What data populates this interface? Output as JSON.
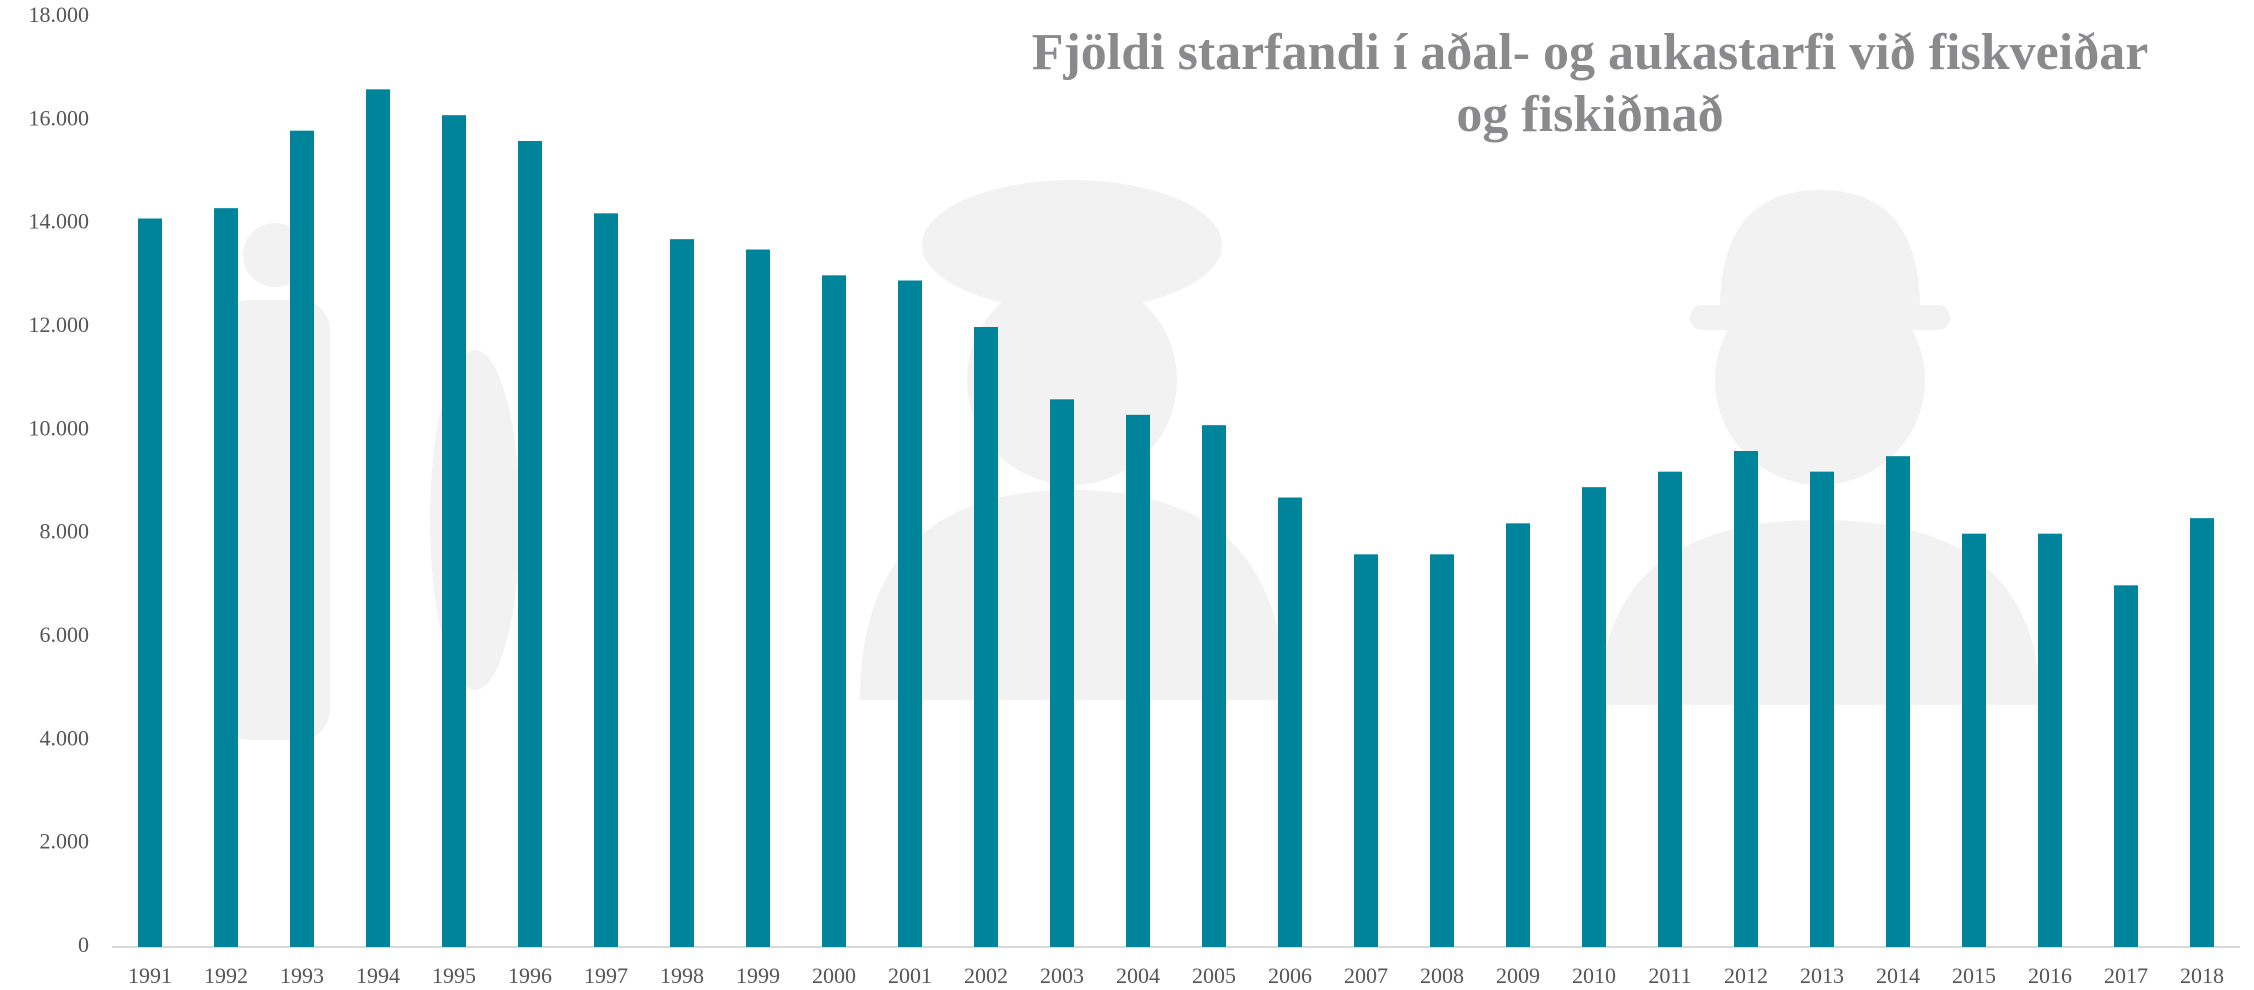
{
  "chart_data": {
    "type": "bar",
    "title": "Fjöldi starfandi í aðal- og aukastarfi við fiskveiðar og fiskiðnað",
    "categories": [
      "1991",
      "1992",
      "1993",
      "1994",
      "1995",
      "1996",
      "1997",
      "1998",
      "1999",
      "2000",
      "2001",
      "2002",
      "2003",
      "2004",
      "2005",
      "2006",
      "2007",
      "2008",
      "2009",
      "2010",
      "2011",
      "2012",
      "2013",
      "2014",
      "2015",
      "2016",
      "2017",
      "2018"
    ],
    "values": [
      14100,
      14300,
      15800,
      16600,
      16100,
      15600,
      14200,
      13700,
      13500,
      13000,
      12900,
      12000,
      10600,
      10300,
      10100,
      8700,
      7600,
      7600,
      8200,
      8900,
      9200,
      9600,
      9200,
      9500,
      8000,
      8000,
      7000,
      8300
    ],
    "color": "#00849b",
    "ylim": [
      0,
      18000
    ],
    "yticks": [
      0,
      {
        "value": 2000,
        "label": "2.000"
      },
      {
        "value": 4000,
        "label": "4.000"
      },
      {
        "value": 6000,
        "label": "6.000"
      },
      {
        "value": 8000,
        "label": "8.000"
      },
      {
        "value": 10000,
        "label": "10.000"
      },
      {
        "value": 12000,
        "label": "12.000"
      },
      {
        "value": 14000,
        "label": "14.000"
      },
      {
        "value": 16000,
        "label": "16.000"
      },
      {
        "value": 18000,
        "label": "18.000"
      }
    ],
    "grid": false
  }
}
